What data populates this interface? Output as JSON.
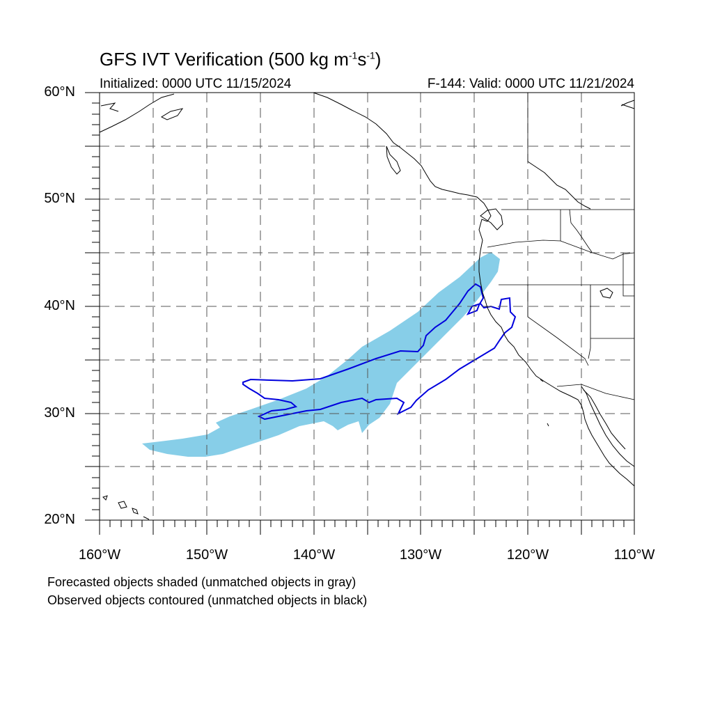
{
  "title": {
    "main": "GFS IVT Verification (500 kg m",
    "sup1": "-1",
    "mid": "s",
    "sup2": "-1",
    "end": ")"
  },
  "initialized": "Initialized: 0000 UTC 11/15/2024",
  "valid": "F-144: Valid: 0000 UTC 11/21/2024",
  "y_axis": {
    "labels": [
      "60°N",
      "50°N",
      "40°N",
      "30°N",
      "20°N"
    ]
  },
  "x_axis": {
    "labels": [
      "160°W",
      "150°W",
      "140°W",
      "130°W",
      "120°W",
      "110°W"
    ]
  },
  "notes": [
    "Forecasted objects shaded (unmatched objects in gray)",
    "Observed objects contoured (unmatched objects in black)"
  ],
  "colors": {
    "forecast_fill": "#87CEE8",
    "observed_contour": "#0000DD",
    "coastline": "#000000",
    "grid": "#555555"
  },
  "map_extent": {
    "lon": [
      -160,
      -110
    ],
    "lat": [
      20,
      60
    ]
  }
}
